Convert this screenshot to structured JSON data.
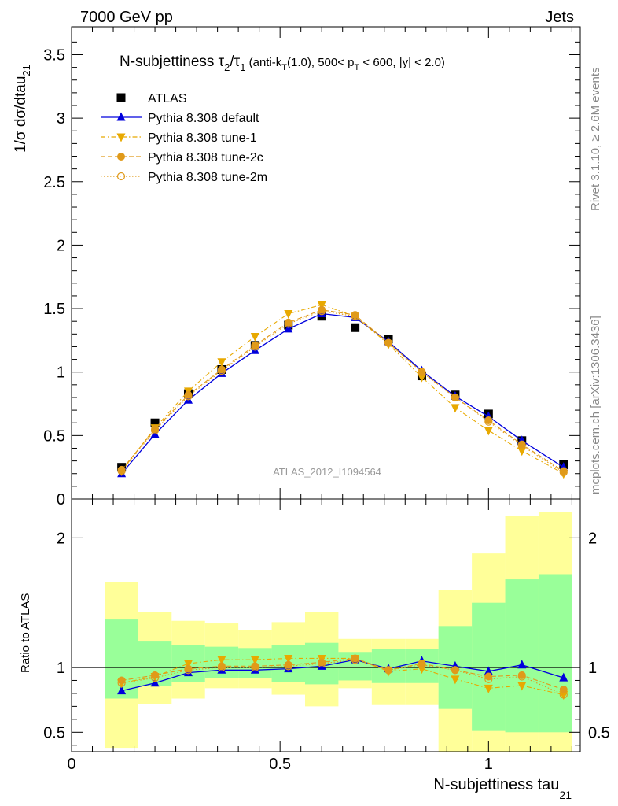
{
  "header": {
    "left": "7000 GeV pp",
    "right": "Jets"
  },
  "side_labels": {
    "rivet": "Rivet 3.1.10, ≥ 2.6M events",
    "mcplots": "mcplots.cern.ch [arXiv:1306.3436]"
  },
  "chart_data": [
    {
      "type": "line",
      "panel": "main",
      "title_main": "N-subjettiness τ",
      "title_sub1": "2",
      "title_slash": "/τ",
      "title_sub2": "1",
      "title_tail1": " (anti-k",
      "title_tail_sub": "T",
      "title_tail2": "(1.0), 500< p",
      "title_tail_sub2": "T",
      "title_tail3": " < 600, |y| < 2.0)",
      "ylabel": "1/σ dσ/dtau",
      "ylabel_sub": "21",
      "watermark": "ATLAS_2012_I1094564",
      "xlim": [
        0,
        1.22
      ],
      "ylim": [
        0,
        3.72
      ],
      "yticks": [
        0,
        0.5,
        1,
        1.5,
        2,
        2.5,
        3,
        3.5
      ],
      "ytick_labels": [
        "0",
        "0.5",
        "1",
        "1.5",
        "2",
        "2.5",
        "3",
        "3.5"
      ],
      "x": [
        0.12,
        0.2,
        0.28,
        0.36,
        0.44,
        0.52,
        0.6,
        0.68,
        0.76,
        0.84,
        0.92,
        1.0,
        1.08,
        1.18
      ],
      "series": [
        {
          "name": "ATLAS",
          "color": "#000000",
          "marker": "square",
          "line": "none",
          "values": [
            0.25,
            0.6,
            0.83,
            1.02,
            1.21,
            1.37,
            1.44,
            1.35,
            1.26,
            0.97,
            0.82,
            0.67,
            0.46,
            0.27
          ]
        },
        {
          "name": "Pythia 8.308 default",
          "color": "#0000dd",
          "marker": "triangle-up",
          "line": "solid",
          "values": [
            0.2,
            0.51,
            0.78,
            0.99,
            1.17,
            1.34,
            1.46,
            1.43,
            1.24,
            1.01,
            0.81,
            0.65,
            0.46,
            0.25
          ]
        },
        {
          "name": "Pythia 8.308 tune-1",
          "color": "#e8a900",
          "marker": "triangle-down",
          "line": "dashdot",
          "values": [
            0.22,
            0.56,
            0.85,
            1.08,
            1.28,
            1.46,
            1.53,
            1.44,
            1.22,
            0.96,
            0.72,
            0.54,
            0.38,
            0.2
          ]
        },
        {
          "name": "Pythia 8.308 tune-2c",
          "color": "#e09a1a",
          "marker": "circle",
          "line": "dashed",
          "values": [
            0.23,
            0.55,
            0.82,
            1.02,
            1.21,
            1.39,
            1.49,
            1.45,
            1.23,
            1.0,
            0.8,
            0.62,
            0.43,
            0.22
          ]
        },
        {
          "name": "Pythia 8.308 tune-2m",
          "color": "#e09a1a",
          "marker": "circle-open",
          "line": "dotted",
          "values": [
            0.22,
            0.54,
            0.81,
            1.01,
            1.2,
            1.38,
            1.48,
            1.44,
            1.23,
            1.0,
            0.8,
            0.61,
            0.42,
            0.21
          ]
        }
      ]
    },
    {
      "type": "line",
      "panel": "ratio",
      "ylabel": "Ratio to ATLAS",
      "xlabel": "N-subjettiness tau",
      "xlabel_sub": "21",
      "xlim": [
        0,
        1.22
      ],
      "ylim": [
        0.35,
        2.3
      ],
      "yticks": [
        0.5,
        1,
        2
      ],
      "ytick_labels": [
        "0.5",
        "1",
        "2"
      ],
      "xticks": [
        0,
        0.5,
        1
      ],
      "xtick_labels": [
        "0",
        "0.5",
        "1"
      ],
      "bands": {
        "edges": [
          0.08,
          0.16,
          0.24,
          0.32,
          0.4,
          0.48,
          0.56,
          0.64,
          0.72,
          0.8,
          0.88,
          0.96,
          1.04,
          1.12,
          1.2
        ],
        "yellow_low": [
          0.38,
          0.72,
          0.76,
          0.84,
          0.84,
          0.79,
          0.7,
          0.84,
          0.71,
          0.71,
          0.28,
          0.2,
          0.2,
          0.2
        ],
        "yellow_high": [
          1.66,
          1.43,
          1.36,
          1.34,
          1.29,
          1.35,
          1.43,
          1.22,
          1.22,
          1.22,
          1.6,
          1.88,
          2.17,
          2.2
        ],
        "green_low": [
          0.76,
          0.86,
          0.89,
          0.92,
          0.92,
          0.89,
          0.87,
          0.9,
          0.88,
          0.88,
          0.68,
          0.51,
          0.5,
          0.5
        ],
        "green_high": [
          1.37,
          1.2,
          1.17,
          1.16,
          1.15,
          1.17,
          1.19,
          1.12,
          1.14,
          1.14,
          1.32,
          1.5,
          1.68,
          1.72
        ]
      },
      "x": [
        0.12,
        0.2,
        0.28,
        0.36,
        0.44,
        0.52,
        0.6,
        0.68,
        0.76,
        0.84,
        0.92,
        1.0,
        1.08,
        1.18
      ],
      "series": [
        {
          "name": "Pythia 8.308 default",
          "color": "#0000dd",
          "marker": "triangle-up",
          "line": "solid",
          "values": [
            0.82,
            0.88,
            0.96,
            0.98,
            0.98,
            0.99,
            1.01,
            1.06,
            0.99,
            1.05,
            1.01,
            0.97,
            1.02,
            0.92
          ]
        },
        {
          "name": "Pythia 8.308 tune-1",
          "color": "#e8a900",
          "marker": "triangle-down",
          "line": "dashdot",
          "values": [
            0.88,
            0.93,
            1.03,
            1.06,
            1.06,
            1.07,
            1.07,
            1.07,
            0.97,
            0.99,
            0.91,
            0.84,
            0.86,
            0.79
          ]
        },
        {
          "name": "Pythia 8.308 tune-2c",
          "color": "#e09a1a",
          "marker": "circle",
          "line": "dashed",
          "values": [
            0.9,
            0.94,
            0.99,
            1.01,
            1.01,
            1.02,
            1.04,
            1.07,
            0.98,
            1.03,
            0.98,
            0.93,
            0.94,
            0.83
          ]
        },
        {
          "name": "Pythia 8.308 tune-2m",
          "color": "#e09a1a",
          "marker": "circle-open",
          "line": "dotted",
          "values": [
            0.88,
            0.92,
            0.98,
            1.0,
            1.0,
            1.01,
            1.03,
            1.06,
            0.98,
            1.02,
            0.98,
            0.91,
            0.93,
            0.79
          ]
        }
      ]
    }
  ],
  "colors": {
    "band_yellow": "#ffff99",
    "band_green": "#99ff99"
  }
}
